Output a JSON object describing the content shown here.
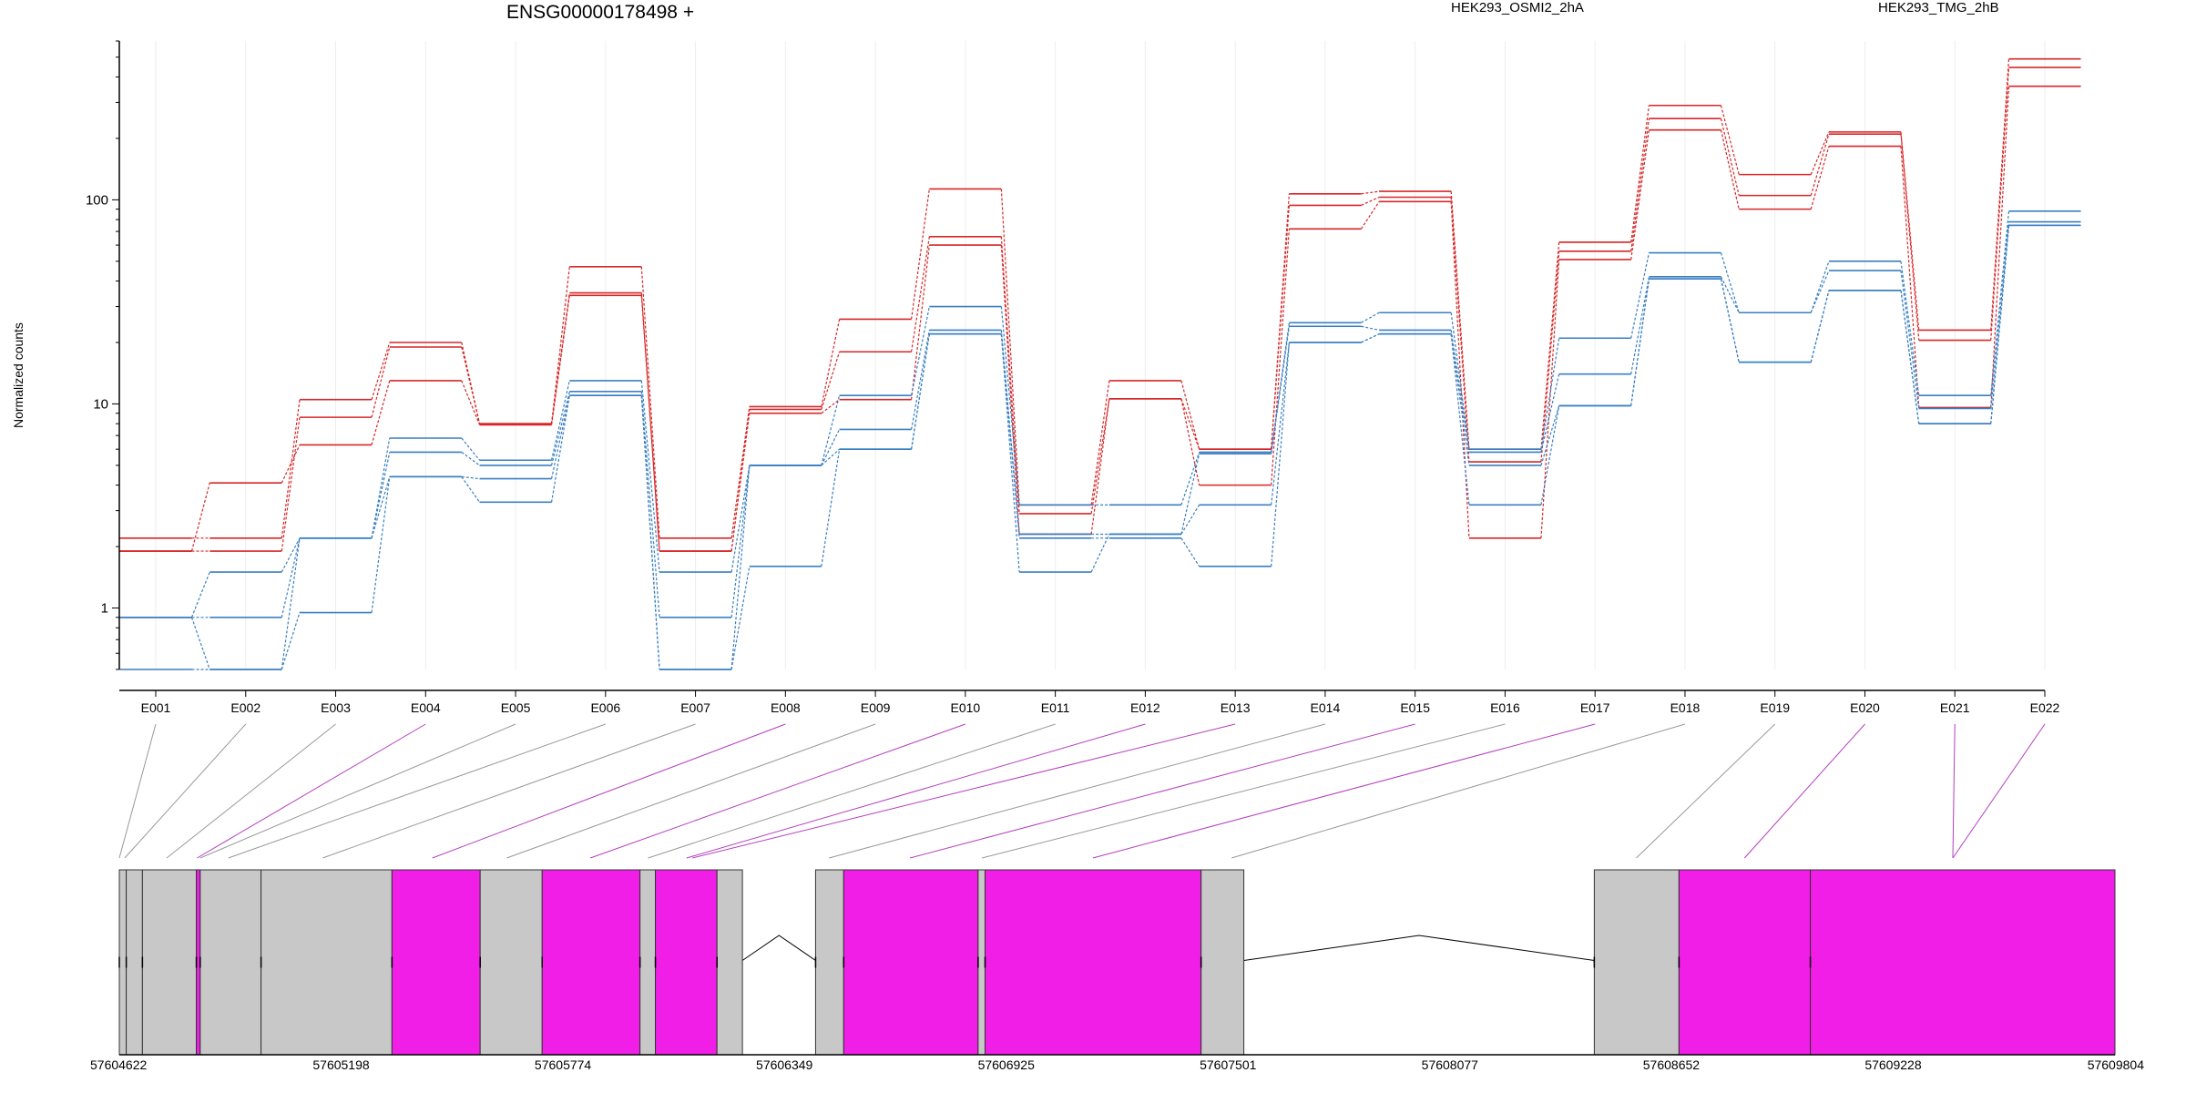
{
  "chart_data": {
    "type": "line",
    "title": "ENSG00000178498 +",
    "ylabel": "Normalized counts",
    "yscale": "log",
    "ylim": [
      0.5,
      600
    ],
    "yticks": [
      1,
      10,
      100
    ],
    "ytick_labels": [
      "1",
      "10",
      "100"
    ],
    "categories": [
      "E001",
      "E002",
      "E003",
      "E004",
      "E005",
      "E006",
      "E007",
      "E008",
      "E009",
      "E010",
      "E011",
      "E012",
      "E013",
      "E014",
      "E015",
      "E016",
      "E017",
      "E018",
      "E019",
      "E020",
      "E021",
      "E022"
    ],
    "series": [
      {
        "name": "HEK293_OSMI2_2hA",
        "color": "#d62728",
        "values": [
          2.2,
          2.2,
          10.5,
          20,
          8,
          47,
          2.2,
          9.7,
          26,
          113,
          3.2,
          13,
          6,
          107,
          110,
          6,
          62,
          290,
          133,
          215,
          23,
          490
        ]
      },
      {
        "values": [
          1.9,
          1.9,
          8.6,
          19,
          8,
          35,
          1.9,
          9.4,
          18,
          66,
          2.9,
          10.6,
          6,
          94,
          103,
          5.2,
          56,
          250,
          105,
          210,
          20.5,
          445
        ]
      },
      {
        "values": [
          1.9,
          4.1,
          6.3,
          13,
          7.9,
          34,
          1.9,
          9,
          10.5,
          60,
          2.3,
          10.6,
          4,
          72,
          98,
          2.2,
          51,
          220,
          90,
          183,
          9.6,
          360
        ]
      },
      {
        "name": "HEK293_TMG_2hB",
        "color": "#3a7fc1",
        "values": [
          0.9,
          1.5,
          2.2,
          6.8,
          5.3,
          13,
          1.5,
          5,
          11,
          30,
          3.2,
          3.2,
          5.8,
          25,
          28,
          6,
          21,
          55,
          28,
          50,
          11,
          88
        ]
      },
      {
        "values": [
          0.9,
          0.9,
          2.2,
          5.8,
          5,
          11.5,
          0.9,
          5,
          7.5,
          23,
          2.3,
          2.3,
          5.7,
          24,
          23,
          5.8,
          14,
          42,
          28,
          45,
          9.5,
          78
        ]
      },
      {
        "values": [
          0.5,
          0.5,
          0.95,
          4.4,
          4.3,
          11,
          0.5,
          1.6,
          6,
          22,
          1.5,
          2.3,
          3.2,
          20,
          22,
          3.2,
          9.8,
          41,
          16,
          36,
          8,
          75
        ]
      },
      {
        "values": [
          0.9,
          0.5,
          2.2,
          4.4,
          3.3,
          11,
          0.5,
          5,
          6,
          22,
          2.2,
          2.2,
          1.6,
          20,
          22,
          5,
          9.8,
          41,
          16,
          36,
          8,
          75
        ]
      }
    ],
    "genomic_axis": {
      "ticks": [
        "57604622",
        "57605198",
        "57605774",
        "57606349",
        "57606925",
        "57607501",
        "57608077",
        "57608652",
        "57609228",
        "57609804"
      ],
      "start": 57604622,
      "end": 57609804,
      "exon_color_gray": "#c8c8c8",
      "exon_color_highlight": "#f01ee6",
      "line_color_gray": "#999999",
      "line_color_highlight": "#b43fbf"
    },
    "exon_blocks": [
      {
        "id": "E001",
        "start": 57604622,
        "end": 57604640,
        "highlight": false
      },
      {
        "id": "E002",
        "start": 57604640,
        "end": 57604682,
        "highlight": false
      },
      {
        "id": "E003",
        "start": 57604682,
        "end": 57604822,
        "highlight": false
      },
      {
        "id": "E004",
        "start": 57604822,
        "end": 57604832,
        "highlight": true
      },
      {
        "id": "E005",
        "start": 57604832,
        "end": 57604990,
        "highlight": false
      },
      {
        "id": "E006",
        "start": 57604990,
        "end": 57605330,
        "highlight": false
      },
      {
        "id": "E007",
        "start": 57605330,
        "end": 57605559,
        "highlight": true
      },
      {
        "id": "E008",
        "start": 57605559,
        "end": 57605720,
        "highlight": false
      },
      {
        "id": "E009",
        "start": 57605720,
        "end": 57605974,
        "highlight": true
      },
      {
        "id": "E010",
        "start": 57605974,
        "end": 57606014,
        "highlight": false
      },
      {
        "id": "E011",
        "start": 57606014,
        "end": 57606174,
        "highlight": true
      },
      {
        "id": "E012",
        "start": 57606174,
        "end": 57606240,
        "highlight": false
      },
      {
        "id": "E013",
        "start": 57606430,
        "end": 57606503,
        "highlight": false
      },
      {
        "id": "E014",
        "start": 57606503,
        "end": 57606852,
        "highlight": true
      },
      {
        "id": "E015",
        "start": 57606852,
        "end": 57606870,
        "highlight": false
      },
      {
        "id": "E016",
        "start": 57606870,
        "end": 57607431,
        "highlight": true
      },
      {
        "id": "E017",
        "start": 57607431,
        "end": 57607542,
        "highlight": false
      },
      {
        "id": "E018",
        "start": 57608452,
        "end": 57608672,
        "highlight": false
      },
      {
        "id": "E019",
        "start": 57608672,
        "end": 57609013,
        "highlight": true
      },
      {
        "id": "E021",
        "start": 57609013,
        "end": 57609804,
        "highlight": true
      }
    ],
    "introns": [
      {
        "start": 57606240,
        "end": 57606430
      },
      {
        "start": 57607542,
        "end": 57608452
      }
    ],
    "connectors": [
      {
        "label": "E001",
        "pos": 57604622,
        "highlight": false
      },
      {
        "label": "E002",
        "pos": 57604636,
        "highlight": false
      },
      {
        "label": "E003",
        "pos": 57604745,
        "highlight": false
      },
      {
        "label": "E004",
        "pos": 57604824,
        "highlight": true
      },
      {
        "label": "E005",
        "pos": 57604832,
        "highlight": false
      },
      {
        "label": "E006",
        "pos": 57604905,
        "highlight": false
      },
      {
        "label": "E007",
        "pos": 57605150,
        "highlight": false
      },
      {
        "label": "E008",
        "pos": 57605435,
        "highlight": true
      },
      {
        "label": "E009",
        "pos": 57605628,
        "highlight": false
      },
      {
        "label": "E010",
        "pos": 57605845,
        "highlight": true
      },
      {
        "label": "E011",
        "pos": 57605995,
        "highlight": false
      },
      {
        "label": "E012",
        "pos": 57606095,
        "highlight": true
      },
      {
        "label": "E013",
        "pos": 57606110,
        "highlight": true
      },
      {
        "label": "E014",
        "pos": 57606465,
        "highlight": false
      },
      {
        "label": "E015",
        "pos": 57606675,
        "highlight": true
      },
      {
        "label": "E016",
        "pos": 57606862,
        "highlight": false
      },
      {
        "label": "E017",
        "pos": 57607150,
        "highlight": true
      },
      {
        "label": "E018",
        "pos": 57607510,
        "highlight": false
      },
      {
        "label": "E019",
        "pos": 57608561,
        "highlight": false
      },
      {
        "label": "E020",
        "pos": 57608842,
        "highlight": true
      },
      {
        "label": "E021",
        "pos": 57609383,
        "highlight": true
      },
      {
        "label": "E022",
        "pos": 57609383,
        "highlight": true
      }
    ]
  }
}
